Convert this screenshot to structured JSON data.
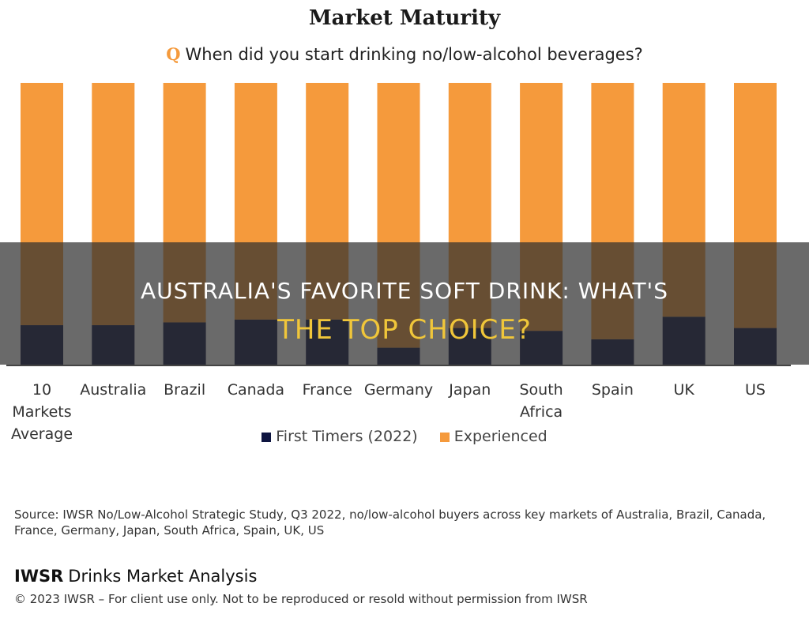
{
  "header": {
    "title": "Market Maturity",
    "question_marker": "Q",
    "question": "When did you start drinking no/low-alcohol beverages?"
  },
  "chart_data": {
    "type": "bar",
    "stacked": true,
    "categories": [
      "10 Markets Average",
      "Australia",
      "Brazil",
      "Canada",
      "France",
      "Germany",
      "Japan",
      "South Africa",
      "Spain",
      "UK",
      "US"
    ],
    "category_lines": [
      [
        "10",
        "Markets",
        "Average"
      ],
      [
        "Australia"
      ],
      [
        "Brazil"
      ],
      [
        "Canada"
      ],
      [
        "France"
      ],
      [
        "Germany"
      ],
      [
        "Japan"
      ],
      [
        "South",
        "Africa"
      ],
      [
        "Spain"
      ],
      [
        "UK"
      ],
      [
        "US"
      ]
    ],
    "series": [
      {
        "name": "First Timers (2022)",
        "color": "#0e1540",
        "values": [
          14,
          14,
          15,
          16,
          16,
          6,
          13,
          12,
          9,
          17,
          13
        ]
      },
      {
        "name": "Experienced",
        "color": "#f59a3c",
        "values": [
          86,
          86,
          85,
          84,
          84,
          94,
          87,
          88,
          91,
          83,
          87
        ]
      }
    ],
    "ylim": [
      0,
      100
    ],
    "legend": "bottom",
    "grid": false
  },
  "overlay": {
    "line1": "AUSTRALIA'S FAVORITE SOFT DRINK: WHAT'S",
    "line2": "THE TOP CHOICE?"
  },
  "footer": {
    "source": "Source: IWSR No/Low-Alcohol Strategic Study, Q3 2022, no/low-alcohol buyers across key markets of Australia, Brazil, Canada, France, Germany, Japan, South Africa, Spain, UK, US",
    "brand_strong": "IWSR",
    "brand_rest": "Drinks Market Analysis",
    "copyright": "© 2023 IWSR – For client use only. Not to be reproduced or resold without permission from IWSR"
  }
}
